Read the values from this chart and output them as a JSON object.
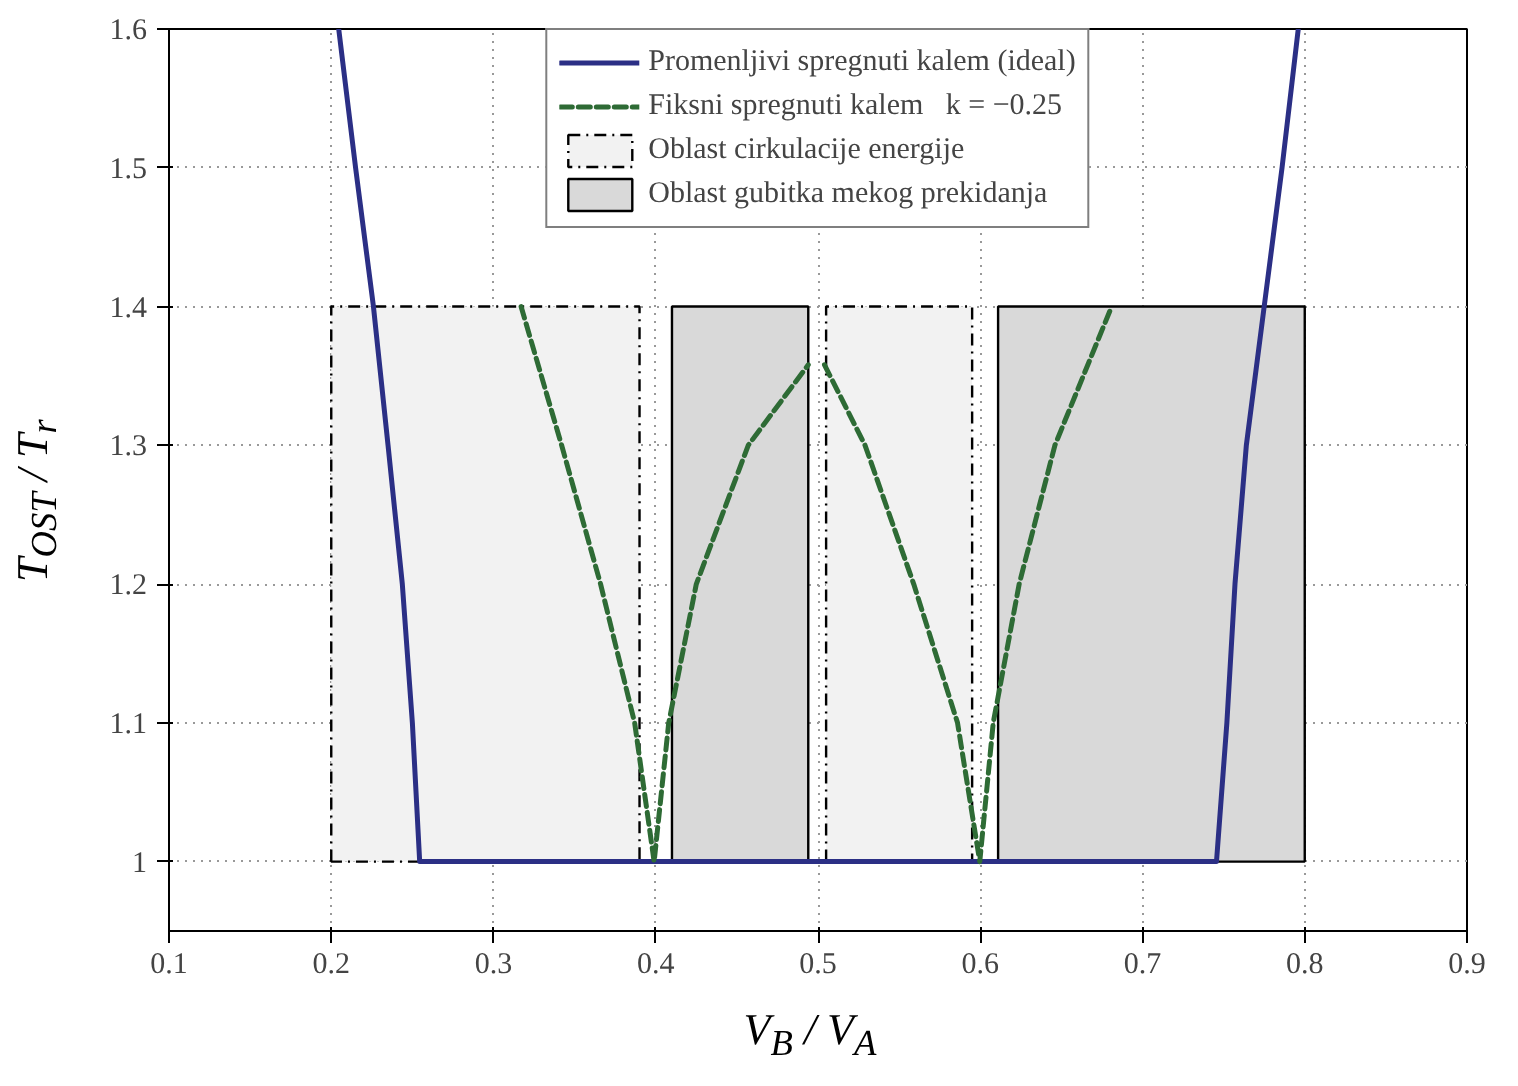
{
  "chart_data": {
    "type": "line",
    "xlabel": "V$_{B}$ / V$_{A}$",
    "ylabel": "T$_{OST}$ / T$_{r}$",
    "xlim": [
      0.1,
      0.9
    ],
    "ylim": [
      0.95,
      1.6
    ],
    "xticks": [
      0.1,
      0.2,
      0.3,
      0.4,
      0.5,
      0.6,
      0.7,
      0.8,
      0.9
    ],
    "yticks": [
      {
        "value": 1.0,
        "label": "1"
      },
      1.1,
      1.2,
      1.3,
      1.4,
      1.5,
      1.6
    ],
    "grid": true,
    "legend": "top",
    "marker": "none",
    "series": [
      {
        "name": "Oblast cirkulacije energije",
        "type": "area",
        "color": "#f2f2f2",
        "line_style": "dashed",
        "x": [
          0.2,
          0.2,
          0.39,
          0.39,
          null,
          0.505,
          0.505,
          0.595,
          0.595
        ],
        "values": [
          1.0,
          1.4,
          1.4,
          1.0,
          null,
          1.0,
          1.4,
          1.4,
          1.0
        ]
      },
      {
        "name": "Oblast gubitka mekog prekidanja",
        "type": "area",
        "color": "#d9d9d9",
        "line_style": "solid",
        "x": [
          0.41,
          0.41,
          0.494,
          0.494,
          null,
          0.611,
          0.611,
          0.8,
          0.8
        ],
        "values": [
          1.0,
          1.4,
          1.4,
          1.0,
          null,
          1.0,
          1.4,
          1.4,
          1.0
        ]
      },
      {
        "name": "Promenljivi spregnuti kalem (ideal)",
        "color": "#2b2f85",
        "line_style": "solid",
        "x": [
          0.2046,
          0.215,
          0.226,
          0.235,
          0.2438,
          0.25,
          0.2545,
          0.7456,
          0.752,
          0.757,
          0.764,
          0.775,
          0.786,
          0.796
        ],
        "values": [
          1.6,
          1.5,
          1.4,
          1.3,
          1.2,
          1.1,
          1.0,
          1.0,
          1.1,
          1.2,
          1.3,
          1.4,
          1.5,
          1.6
        ]
      },
      {
        "name": "Fiksni spregnuti kalem   k = −0.25",
        "color": "#2e6b35",
        "line_style": "dashed",
        "x": [
          0.317,
          0.342,
          0.366,
          0.387,
          0.399,
          0.408,
          0.425,
          0.457,
          0.494,
          null,
          0.504,
          0.529,
          0.559,
          0.586,
          0.5997,
          0.608,
          0.624,
          0.646,
          0.681
        ],
        "values": [
          1.4,
          1.3,
          1.2,
          1.1,
          1.0,
          1.1,
          1.2,
          1.3,
          1.358,
          null,
          1.358,
          1.3,
          1.2,
          1.1,
          1.0,
          1.1,
          1.2,
          1.3,
          1.4
        ]
      }
    ]
  }
}
